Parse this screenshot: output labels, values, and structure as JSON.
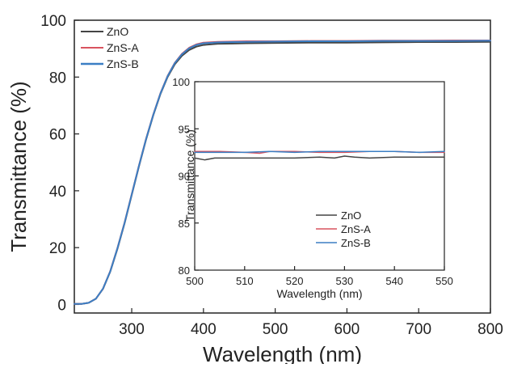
{
  "chart_data": [
    {
      "type": "line",
      "xlabel": "Wavelength (nm)",
      "ylabel": "Transmittance (%)",
      "xlim": [
        220,
        800
      ],
      "ylim": [
        -3,
        100
      ],
      "xticks": [
        300,
        400,
        500,
        600,
        700,
        800
      ],
      "yticks": [
        0,
        20,
        40,
        60,
        80,
        100
      ],
      "grid": false,
      "legend": "top-left",
      "series": [
        {
          "name": "ZnO",
          "color": "#444444",
          "x": [
            220,
            230,
            240,
            250,
            260,
            270,
            280,
            290,
            300,
            310,
            320,
            330,
            340,
            350,
            360,
            370,
            380,
            390,
            400,
            420,
            440,
            460,
            500,
            550,
            600,
            650,
            700,
            750,
            800
          ],
          "y": [
            0.2,
            0.2,
            0.6,
            2.0,
            5.5,
            11.5,
            19.5,
            28.5,
            38.5,
            48.5,
            58.0,
            66.5,
            74.0,
            80.0,
            84.5,
            87.5,
            89.5,
            90.7,
            91.3,
            91.7,
            91.8,
            91.9,
            92.0,
            92.1,
            92.1,
            92.2,
            92.3,
            92.3,
            92.4
          ]
        },
        {
          "name": "ZnS-A",
          "color": "#d9535f",
          "x": [
            220,
            230,
            240,
            250,
            260,
            270,
            280,
            290,
            300,
            310,
            320,
            330,
            340,
            350,
            360,
            370,
            380,
            390,
            400,
            420,
            440,
            460,
            500,
            550,
            600,
            650,
            700,
            750,
            800
          ],
          "y": [
            0.2,
            0.2,
            0.6,
            2.0,
            5.6,
            11.7,
            19.8,
            28.8,
            38.8,
            48.8,
            58.3,
            66.8,
            74.3,
            80.4,
            85.0,
            88.2,
            90.3,
            91.5,
            92.1,
            92.4,
            92.5,
            92.6,
            92.6,
            92.7,
            92.7,
            92.8,
            92.8,
            92.9,
            92.9
          ]
        },
        {
          "name": "ZnS-B",
          "color": "#3b7fc4",
          "x": [
            220,
            230,
            240,
            250,
            260,
            270,
            280,
            290,
            300,
            310,
            320,
            330,
            340,
            350,
            360,
            370,
            380,
            390,
            400,
            420,
            440,
            460,
            500,
            550,
            600,
            650,
            700,
            750,
            800
          ],
          "y": [
            0.2,
            0.2,
            0.6,
            2.0,
            5.6,
            11.6,
            19.7,
            28.7,
            38.7,
            48.7,
            58.2,
            66.7,
            74.2,
            80.3,
            84.9,
            88.0,
            90.1,
            91.3,
            91.9,
            92.2,
            92.3,
            92.4,
            92.5,
            92.6,
            92.6,
            92.7,
            92.7,
            92.7,
            92.8
          ]
        }
      ]
    },
    {
      "type": "line",
      "xlabel": "Wavelength (nm)",
      "ylabel": "Transmittance (%)",
      "xlim": [
        500,
        550
      ],
      "ylim": [
        80,
        100
      ],
      "xticks": [
        500,
        510,
        520,
        530,
        540,
        550
      ],
      "yticks": [
        80,
        85,
        90,
        95,
        100
      ],
      "grid": false,
      "legend": "bottom-center",
      "series": [
        {
          "name": "ZnO",
          "color": "#444444",
          "x": [
            500,
            502,
            504,
            506,
            510,
            515,
            520,
            525,
            528,
            530,
            532,
            535,
            540,
            545,
            550
          ],
          "y": [
            91.9,
            91.7,
            91.9,
            91.9,
            91.9,
            91.9,
            91.9,
            92.0,
            91.9,
            92.1,
            92.0,
            91.9,
            92.0,
            92.0,
            92.0
          ]
        },
        {
          "name": "ZnS-A",
          "color": "#d9535f",
          "x": [
            500,
            505,
            510,
            513,
            515,
            520,
            525,
            530,
            535,
            540,
            545,
            550
          ],
          "y": [
            92.6,
            92.6,
            92.5,
            92.4,
            92.6,
            92.6,
            92.5,
            92.5,
            92.6,
            92.6,
            92.5,
            92.5
          ]
        },
        {
          "name": "ZnS-B",
          "color": "#3b7fc4",
          "x": [
            500,
            505,
            510,
            515,
            520,
            525,
            530,
            535,
            540,
            545,
            550
          ],
          "y": [
            92.5,
            92.5,
            92.5,
            92.6,
            92.5,
            92.6,
            92.6,
            92.6,
            92.6,
            92.5,
            92.6
          ]
        }
      ]
    }
  ]
}
